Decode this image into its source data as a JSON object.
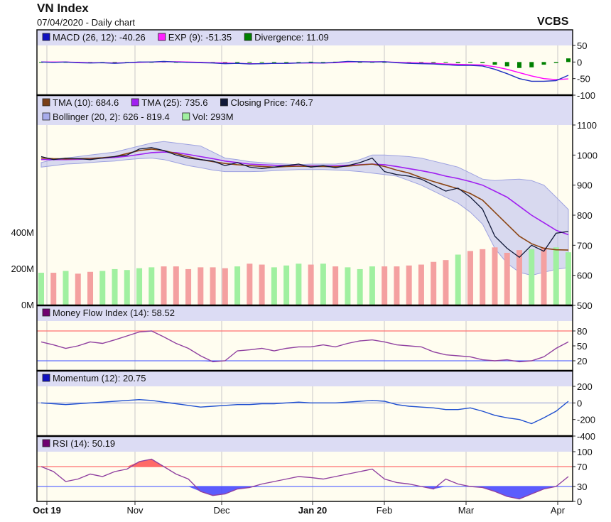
{
  "header": {
    "title": "VN Index",
    "subtitle": "07/04/2020 - Daily chart",
    "brand": "VCBS"
  },
  "colors": {
    "panel_bg": "#fffdf0",
    "legend_bg": "#dcdcf4",
    "grid": "#c8c8c8",
    "macd": "#2030c0",
    "exp": "#ff00ff",
    "divergence": "#008000",
    "tma10": "#8b4513",
    "tma25": "#a020f0",
    "close": "#101838",
    "bollinger": "#b8bcee",
    "vol_up": "#a0f0a0",
    "vol_down": "#f4a0a0",
    "mfi": "#9040a0",
    "momentum": "#2050d0",
    "rsi": "#9040a0",
    "upper_ref": "#ff7070",
    "lower_ref": "#6070ff"
  },
  "chart_data": [
    {
      "type": "line",
      "panel": "macd",
      "legend": [
        {
          "label": "MACD (26, 12): -40.26",
          "color": "#1010c0"
        },
        {
          "label": "EXP (9): -51.35",
          "color": "#ff20ff"
        },
        {
          "label": "Divergence: 11.09",
          "color": "#008000"
        }
      ],
      "yticks": [
        "50",
        "0",
        "-50",
        "-100"
      ],
      "ylim": [
        -100,
        50
      ],
      "series": [
        {
          "key": "macd",
          "values": [
            0,
            -1,
            0,
            -2,
            -3,
            -2,
            -4,
            -2,
            0,
            0,
            2,
            0,
            -1,
            -2,
            -3,
            -5,
            -4,
            -6,
            -5,
            -4,
            -4,
            -3,
            -2,
            -3,
            -1,
            2,
            1,
            0,
            1,
            -2,
            -4,
            -5,
            -6,
            -8,
            -10,
            -10,
            -12,
            -22,
            -35,
            -50,
            -58,
            -58,
            -56,
            -40
          ]
        },
        {
          "key": "exp",
          "values": [
            0,
            0,
            0,
            -1,
            -2,
            -2,
            -3,
            -2,
            -1,
            0,
            1,
            1,
            0,
            -1,
            -2,
            -3,
            -4,
            -5,
            -5,
            -4,
            -4,
            -3,
            -3,
            -3,
            -2,
            0,
            1,
            1,
            1,
            -1,
            -2,
            -3,
            -4,
            -6,
            -7,
            -8,
            -9,
            -14,
            -22,
            -32,
            -42,
            -50,
            -53,
            -51
          ]
        },
        {
          "key": "divergence",
          "values": [
            0,
            -1,
            0,
            -1,
            -1,
            0,
            -1,
            0,
            1,
            0,
            1,
            -1,
            -1,
            -1,
            -1,
            -2,
            0,
            -1,
            0,
            0,
            0,
            0,
            1,
            0,
            1,
            2,
            0,
            -1,
            0,
            -1,
            -2,
            -2,
            -2,
            -2,
            -3,
            -2,
            -3,
            -8,
            -13,
            -18,
            -16,
            -8,
            -3,
            11
          ]
        }
      ]
    },
    {
      "type": "line",
      "panel": "price",
      "legend": [
        {
          "label": "TMA (10): 684.6",
          "color": "#7a3f18"
        },
        {
          "label": "TMA (25): 735.6",
          "color": "#a020f0"
        },
        {
          "label": "Closing Price: 746.7",
          "color": "#101838"
        },
        {
          "label": "Bollinger (20, 2): 626 - 819.4",
          "color": "#a8acec"
        },
        {
          "label": "Vol: 293M",
          "color": "#a0f0a0"
        }
      ],
      "yticks": [
        "1100",
        "1000",
        "900",
        "800",
        "700",
        "600",
        "500"
      ],
      "vol_ticks": [
        "400M",
        "200M",
        "0M"
      ],
      "ylim": [
        500,
        1100
      ],
      "vol_max": 470,
      "series": [
        {
          "key": "close",
          "values": [
            995,
            985,
            990,
            988,
            985,
            990,
            995,
            1000,
            1020,
            1025,
            1015,
            1000,
            990,
            985,
            980,
            965,
            975,
            960,
            955,
            960,
            965,
            970,
            960,
            965,
            958,
            965,
            975,
            990,
            945,
            935,
            930,
            920,
            900,
            880,
            890,
            860,
            820,
            730,
            690,
            660,
            700,
            680,
            740,
            746
          ]
        },
        {
          "key": "tma10",
          "values": [
            990,
            988,
            987,
            988,
            989,
            991,
            995,
            1005,
            1015,
            1020,
            1015,
            1005,
            995,
            985,
            978,
            972,
            968,
            965,
            962,
            960,
            962,
            963,
            962,
            962,
            961,
            963,
            967,
            970,
            962,
            950,
            940,
            925,
            912,
            900,
            888,
            872,
            850,
            810,
            770,
            730,
            705,
            690,
            685,
            684
          ]
        },
        {
          "key": "tma25",
          "values": [
            985,
            985,
            985,
            986,
            988,
            990,
            992,
            996,
            1002,
            1008,
            1010,
            1008,
            1002,
            995,
            988,
            980,
            975,
            970,
            968,
            966,
            965,
            964,
            964,
            964,
            964,
            966,
            968,
            970,
            968,
            962,
            955,
            948,
            940,
            930,
            922,
            912,
            900,
            880,
            860,
            830,
            800,
            775,
            750,
            735
          ]
        },
        {
          "key": "boll_up",
          "values": [
            975,
            985,
            990,
            995,
            1000,
            1005,
            1010,
            1020,
            1030,
            1040,
            1045,
            1040,
            1035,
            1030,
            1010,
            990,
            985,
            978,
            975,
            972,
            970,
            968,
            970,
            970,
            970,
            975,
            985,
            1000,
            1000,
            998,
            995,
            990,
            980,
            970,
            960,
            940,
            920,
            915,
            918,
            920,
            915,
            900,
            860,
            819
          ]
        },
        {
          "key": "boll_low",
          "values": [
            960,
            965,
            970,
            972,
            975,
            978,
            980,
            985,
            988,
            990,
            985,
            975,
            965,
            958,
            950,
            945,
            945,
            945,
            946,
            948,
            950,
            952,
            952,
            952,
            950,
            948,
            945,
            940,
            935,
            930,
            915,
            900,
            880,
            860,
            840,
            810,
            770,
            690,
            640,
            610,
            600,
            610,
            620,
            626
          ]
        }
      ],
      "volume": [
        180,
        180,
        190,
        175,
        185,
        190,
        200,
        195,
        205,
        210,
        215,
        215,
        200,
        210,
        210,
        205,
        215,
        230,
        225,
        210,
        220,
        230,
        225,
        230,
        215,
        210,
        200,
        215,
        215,
        215,
        220,
        225,
        240,
        250,
        280,
        300,
        310,
        320,
        290,
        305,
        310,
        320,
        320,
        293
      ]
    },
    {
      "type": "line",
      "panel": "mfi",
      "legend": [
        {
          "label": "Money Flow Index (14): 58.52",
          "color": "#700070"
        }
      ],
      "yticks": [
        "80",
        "50",
        "20"
      ],
      "ylim": [
        0,
        100
      ],
      "series": [
        {
          "key": "mfi",
          "values": [
            58,
            52,
            45,
            50,
            58,
            55,
            62,
            70,
            78,
            80,
            68,
            55,
            45,
            30,
            18,
            20,
            40,
            42,
            45,
            40,
            45,
            48,
            48,
            52,
            48,
            55,
            60,
            62,
            58,
            52,
            50,
            48,
            38,
            32,
            30,
            28,
            22,
            20,
            22,
            18,
            20,
            28,
            45,
            58
          ]
        }
      ]
    },
    {
      "type": "line",
      "panel": "momentum",
      "legend": [
        {
          "label": "Momentum (12): 20.75",
          "color": "#1010c0"
        }
      ],
      "yticks": [
        "200",
        "0",
        "-200",
        "-400"
      ],
      "ylim": [
        -400,
        200
      ],
      "series": [
        {
          "key": "momentum",
          "values": [
            0,
            -10,
            -20,
            -10,
            0,
            10,
            20,
            30,
            40,
            30,
            10,
            -10,
            -30,
            -50,
            -40,
            -30,
            -20,
            -20,
            -10,
            -10,
            0,
            10,
            0,
            0,
            0,
            10,
            20,
            30,
            20,
            -20,
            -40,
            -50,
            -60,
            -80,
            -80,
            -60,
            -100,
            -150,
            -180,
            -200,
            -250,
            -180,
            -100,
            20
          ]
        }
      ]
    },
    {
      "type": "line",
      "panel": "rsi",
      "legend": [
        {
          "label": "RSI (14): 50.19",
          "color": "#700070"
        }
      ],
      "yticks": [
        "100",
        "70",
        "30",
        "0"
      ],
      "ylim": [
        0,
        100
      ],
      "series": [
        {
          "key": "rsi",
          "values": [
            70,
            60,
            40,
            45,
            55,
            50,
            60,
            65,
            80,
            85,
            70,
            55,
            45,
            20,
            12,
            15,
            25,
            28,
            35,
            40,
            45,
            50,
            48,
            45,
            50,
            55,
            60,
            65,
            45,
            38,
            35,
            30,
            25,
            45,
            35,
            30,
            28,
            20,
            10,
            5,
            15,
            25,
            30,
            50
          ]
        }
      ]
    }
  ],
  "xaxis": {
    "labels": [
      "Oct 19",
      "Nov",
      "Dec",
      "Jan 20",
      "Feb",
      "Mar",
      "Apr"
    ]
  }
}
